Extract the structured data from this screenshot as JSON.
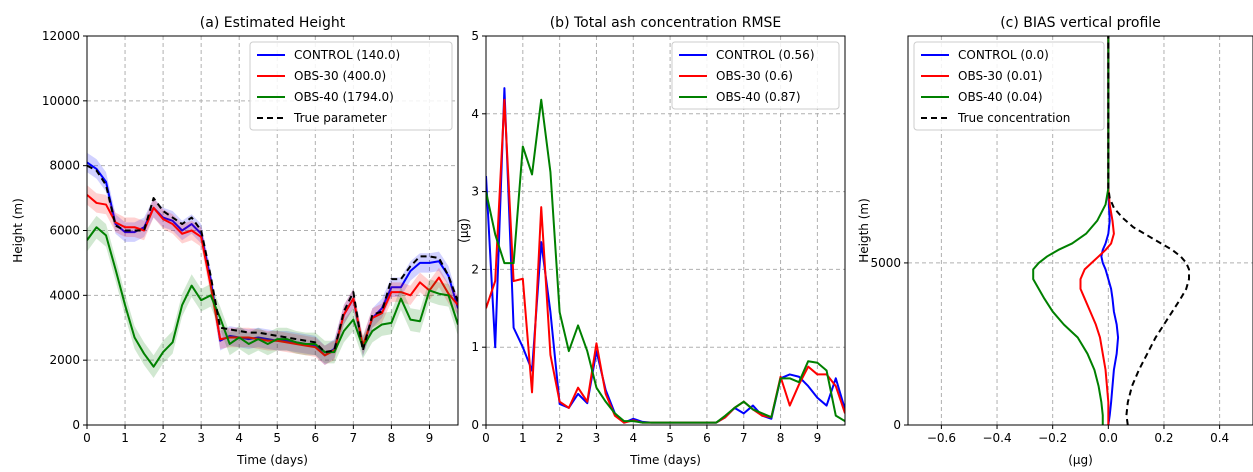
{
  "colors": {
    "control": "#0000ff",
    "obs30": "#ff0000",
    "obs40": "#008000",
    "truth": "#000000"
  },
  "chart_data": [
    {
      "type": "line",
      "title": "(a) Estimated Height",
      "xlabel": "Time (days)",
      "ylabel": "Height (m)",
      "xlim": [
        0,
        9.75
      ],
      "ylim": [
        0,
        12000
      ],
      "xticks": [
        0,
        1,
        2,
        3,
        4,
        5,
        6,
        7,
        8,
        9
      ],
      "yticks": [
        0,
        2000,
        4000,
        6000,
        8000,
        10000,
        12000
      ],
      "xtick_labels": [
        "0",
        "1",
        "2",
        "3",
        "4",
        "5",
        "6",
        "7",
        "8",
        "9"
      ],
      "ytick_labels": [
        "0",
        "2000",
        "4000",
        "6000",
        "8000",
        "10000",
        "12000"
      ],
      "grid": true,
      "legend_position": "top-right",
      "series": [
        {
          "name": "CONTROL (140.0)",
          "color": "#0000ff",
          "style": "solid",
          "band": 300,
          "x": [
            0,
            0.25,
            0.5,
            0.75,
            1,
            1.25,
            1.5,
            1.75,
            2,
            2.25,
            2.5,
            2.75,
            3,
            3.25,
            3.5,
            3.75,
            4,
            4.25,
            4.5,
            4.75,
            5,
            5.25,
            5.5,
            5.75,
            6,
            6.25,
            6.5,
            6.75,
            7,
            7.25,
            7.5,
            7.75,
            8,
            8.25,
            8.5,
            8.75,
            9,
            9.25,
            9.5,
            9.75
          ],
          "y": [
            8100,
            7900,
            7500,
            6200,
            5950,
            5950,
            6100,
            6700,
            6400,
            6300,
            6000,
            6200,
            5900,
            4500,
            2600,
            2750,
            2700,
            2650,
            2700,
            2650,
            2600,
            2600,
            2550,
            2500,
            2450,
            2150,
            2350,
            3400,
            3900,
            2400,
            3300,
            3600,
            4250,
            4250,
            4750,
            5000,
            5000,
            5050,
            4600,
            3600
          ]
        },
        {
          "name": "OBS-30 (400.0)",
          "color": "#ff0000",
          "style": "solid",
          "band": 300,
          "x": [
            0,
            0.25,
            0.5,
            0.75,
            1,
            1.25,
            1.5,
            1.75,
            2,
            2.25,
            2.5,
            2.75,
            3,
            3.25,
            3.5,
            3.75,
            4,
            4.25,
            4.5,
            4.75,
            5,
            5.25,
            5.5,
            5.75,
            6,
            6.25,
            6.5,
            6.75,
            7,
            7.25,
            7.5,
            7.75,
            8,
            8.25,
            8.5,
            8.75,
            9,
            9.25,
            9.5,
            9.75
          ],
          "y": [
            7100,
            6850,
            6800,
            6250,
            6100,
            6100,
            6000,
            6700,
            6350,
            6200,
            5900,
            6000,
            5800,
            4300,
            2650,
            2700,
            2700,
            2700,
            2650,
            2600,
            2600,
            2550,
            2500,
            2450,
            2400,
            2150,
            2300,
            3400,
            3900,
            2450,
            3300,
            3450,
            4100,
            4100,
            4000,
            4400,
            4150,
            4550,
            4050,
            3700
          ]
        },
        {
          "name": "OBS-40 (1794.0)",
          "color": "#008000",
          "style": "solid",
          "band": 350,
          "x": [
            0,
            0.25,
            0.5,
            0.75,
            1,
            1.25,
            1.5,
            1.75,
            2,
            2.25,
            2.5,
            2.75,
            3,
            3.25,
            3.5,
            3.75,
            4,
            4.25,
            4.5,
            4.75,
            5,
            5.25,
            5.5,
            5.75,
            6,
            6.25,
            6.5,
            6.75,
            7,
            7.25,
            7.5,
            7.75,
            8,
            8.25,
            8.5,
            8.75,
            9,
            9.25,
            9.5,
            9.75
          ],
          "y": [
            5700,
            6100,
            5850,
            4800,
            3700,
            2700,
            2200,
            1800,
            2250,
            2550,
            3700,
            4300,
            3850,
            4000,
            3300,
            2500,
            2700,
            2500,
            2650,
            2500,
            2650,
            2650,
            2550,
            2500,
            2500,
            2250,
            2250,
            2900,
            3250,
            2400,
            2900,
            3100,
            3150,
            3900,
            3250,
            3200,
            4150,
            4050,
            4000,
            3100
          ]
        },
        {
          "name": "True parameter",
          "color": "#000000",
          "style": "dashed",
          "x": [
            0,
            0.25,
            0.5,
            0.75,
            1,
            1.25,
            1.5,
            1.75,
            2,
            2.25,
            2.5,
            2.75,
            3,
            3.25,
            3.5,
            3.75,
            4,
            4.25,
            4.5,
            4.75,
            5,
            5.25,
            5.5,
            5.75,
            6,
            6.25,
            6.5,
            6.75,
            7,
            7.25,
            7.5,
            7.75,
            8,
            8.25,
            8.5,
            8.75,
            9,
            9.25,
            9.5,
            9.75
          ],
          "y": [
            8000,
            7850,
            7400,
            6150,
            6000,
            6000,
            6000,
            7000,
            6600,
            6400,
            6200,
            6400,
            6000,
            4600,
            3000,
            2950,
            2900,
            2850,
            2850,
            2800,
            2750,
            2700,
            2650,
            2600,
            2550,
            2250,
            2300,
            3500,
            4100,
            2300,
            3400,
            3500,
            4500,
            4500,
            4900,
            5200,
            5200,
            5150,
            4600,
            3800
          ]
        }
      ]
    },
    {
      "type": "line",
      "title": "(b) Total ash concentration RMSE",
      "xlabel": "Time (days)",
      "ylabel": "(μg)",
      "xlim": [
        0,
        9.75
      ],
      "ylim": [
        0,
        5
      ],
      "xticks": [
        0,
        1,
        2,
        3,
        4,
        5,
        6,
        7,
        8,
        9
      ],
      "yticks": [
        0,
        1,
        2,
        3,
        4,
        5
      ],
      "xtick_labels": [
        "0",
        "1",
        "2",
        "3",
        "4",
        "5",
        "6",
        "7",
        "8",
        "9"
      ],
      "ytick_labels": [
        "0",
        "1",
        "2",
        "3",
        "4",
        "5"
      ],
      "grid": true,
      "legend_position": "top-right",
      "series": [
        {
          "name": "CONTROL (0.56)",
          "color": "#0000ff",
          "style": "solid",
          "x": [
            0,
            0.25,
            0.5,
            0.75,
            1,
            1.25,
            1.5,
            1.75,
            2,
            2.25,
            2.5,
            2.75,
            3,
            3.25,
            3.5,
            3.75,
            4,
            4.25,
            4.5,
            4.75,
            5,
            5.25,
            5.5,
            5.75,
            6,
            6.25,
            6.5,
            6.75,
            7,
            7.25,
            7.5,
            7.75,
            8,
            8.25,
            8.5,
            8.75,
            9,
            9.25,
            9.5,
            9.75
          ],
          "y": [
            3.2,
            1.0,
            4.33,
            1.25,
            1.0,
            0.7,
            2.35,
            1.45,
            0.27,
            0.22,
            0.4,
            0.28,
            0.95,
            0.45,
            0.15,
            0.03,
            0.08,
            0.04,
            0.03,
            0.03,
            0.03,
            0.03,
            0.03,
            0.03,
            0.03,
            0.03,
            0.1,
            0.22,
            0.15,
            0.25,
            0.12,
            0.08,
            0.6,
            0.65,
            0.62,
            0.5,
            0.35,
            0.25,
            0.6,
            0.2
          ]
        },
        {
          "name": "OBS-30 (0.6)",
          "color": "#ff0000",
          "style": "solid",
          "x": [
            0,
            0.25,
            0.5,
            0.75,
            1,
            1.25,
            1.5,
            1.75,
            2,
            2.25,
            2.5,
            2.75,
            3,
            3.25,
            3.5,
            3.75,
            4,
            4.25,
            4.5,
            4.75,
            5,
            5.25,
            5.5,
            5.75,
            6,
            6.25,
            6.5,
            6.75,
            7,
            7.25,
            7.5,
            7.75,
            8,
            8.25,
            8.5,
            8.75,
            9,
            9.25,
            9.5,
            9.75
          ],
          "y": [
            1.5,
            1.85,
            4.18,
            1.85,
            1.88,
            0.42,
            2.8,
            0.9,
            0.3,
            0.22,
            0.48,
            0.3,
            1.05,
            0.4,
            0.12,
            0.03,
            0.06,
            0.03,
            0.03,
            0.03,
            0.03,
            0.03,
            0.03,
            0.03,
            0.03,
            0.03,
            0.1,
            0.22,
            0.3,
            0.2,
            0.12,
            0.1,
            0.62,
            0.25,
            0.52,
            0.75,
            0.65,
            0.65,
            0.5,
            0.15
          ]
        },
        {
          "name": "OBS-40 (0.87)",
          "color": "#008000",
          "style": "solid",
          "x": [
            0,
            0.25,
            0.5,
            0.75,
            1,
            1.25,
            1.5,
            1.75,
            2,
            2.25,
            2.5,
            2.75,
            3,
            3.25,
            3.5,
            3.75,
            4,
            4.25,
            4.5,
            4.75,
            5,
            5.25,
            5.5,
            5.75,
            6,
            6.25,
            6.5,
            6.75,
            7,
            7.25,
            7.5,
            7.75,
            8,
            8.25,
            8.5,
            8.75,
            9,
            9.25,
            9.5,
            9.75
          ],
          "y": [
            3.0,
            2.45,
            2.08,
            2.08,
            3.58,
            3.22,
            4.18,
            3.25,
            1.45,
            0.95,
            1.28,
            0.95,
            0.48,
            0.3,
            0.15,
            0.05,
            0.05,
            0.03,
            0.03,
            0.03,
            0.03,
            0.03,
            0.03,
            0.03,
            0.03,
            0.03,
            0.12,
            0.22,
            0.3,
            0.2,
            0.15,
            0.1,
            0.6,
            0.6,
            0.55,
            0.82,
            0.8,
            0.7,
            0.12,
            0.05
          ]
        }
      ]
    },
    {
      "type": "line",
      "title": "(c) BIAS vertical profile",
      "xlabel": "(μg)",
      "ylabel": "Heigth (m)",
      "xlim": [
        -0.72,
        0.52
      ],
      "ylim": [
        0,
        12000
      ],
      "xticks": [
        -0.6,
        -0.4,
        -0.2,
        0.0,
        0.2,
        0.4
      ],
      "yticks": [
        0,
        5000
      ],
      "xtick_labels": [
        "−0.6",
        "−0.4",
        "−0.2",
        "0.0",
        "0.2",
        "0.4"
      ],
      "ytick_labels": [
        "0",
        "5000"
      ],
      "grid": true,
      "legend_position": "top-left",
      "series": [
        {
          "name": "CONTROL (0.0)",
          "color": "#0000ff",
          "style": "solid",
          "x": [
            0.0,
            0.005,
            0.01,
            0.015,
            0.02,
            0.03,
            0.035,
            0.03,
            0.02,
            0.015,
            0.01,
            0.0,
            -0.01,
            -0.02,
            -0.025,
            -0.02,
            -0.01,
            0.0,
            0.005,
            0.002,
            0.0,
            0.0
          ],
          "y": [
            0,
            300,
            700,
            1200,
            1700,
            2200,
            2700,
            3100,
            3500,
            3900,
            4200,
            4500,
            4800,
            5000,
            5200,
            5400,
            5600,
            5900,
            6300,
            6800,
            7300,
            12000
          ]
        },
        {
          "name": "OBS-30 (0.01)",
          "color": "#ff0000",
          "style": "solid",
          "x": [
            0.0,
            0.0,
            0.0,
            -0.005,
            -0.01,
            -0.02,
            -0.03,
            -0.045,
            -0.065,
            -0.085,
            -0.1,
            -0.1,
            -0.085,
            -0.06,
            -0.035,
            -0.01,
            0.01,
            0.02,
            0.015,
            0.005,
            0.0,
            0.0
          ],
          "y": [
            0,
            300,
            700,
            1200,
            1700,
            2200,
            2700,
            3100,
            3500,
            3900,
            4200,
            4500,
            4800,
            5000,
            5200,
            5400,
            5600,
            5900,
            6300,
            6800,
            7300,
            12000
          ]
        },
        {
          "name": "OBS-40 (0.04)",
          "color": "#008000",
          "style": "solid",
          "x": [
            -0.02,
            -0.02,
            -0.025,
            -0.035,
            -0.05,
            -0.075,
            -0.11,
            -0.16,
            -0.2,
            -0.23,
            -0.25,
            -0.27,
            -0.27,
            -0.25,
            -0.22,
            -0.18,
            -0.13,
            -0.08,
            -0.04,
            -0.01,
            0.0,
            0.0
          ],
          "y": [
            0,
            300,
            700,
            1200,
            1700,
            2200,
            2700,
            3100,
            3500,
            3900,
            4200,
            4500,
            4800,
            5000,
            5200,
            5400,
            5600,
            5900,
            6300,
            6800,
            7300,
            12000
          ]
        },
        {
          "name": "True concentration",
          "color": "#000000",
          "style": "dashed",
          "x": [
            0.07,
            0.065,
            0.07,
            0.085,
            0.11,
            0.14,
            0.17,
            0.2,
            0.23,
            0.26,
            0.28,
            0.29,
            0.29,
            0.28,
            0.26,
            0.23,
            0.19,
            0.14,
            0.09,
            0.05,
            0.02,
            0.005,
            0.0,
            0.0
          ],
          "y": [
            0,
            300,
            700,
            1200,
            1700,
            2200,
            2700,
            3100,
            3500,
            3900,
            4200,
            4500,
            4800,
            5000,
            5200,
            5400,
            5600,
            5850,
            6100,
            6400,
            6700,
            7000,
            7300,
            12000
          ]
        }
      ]
    }
  ]
}
